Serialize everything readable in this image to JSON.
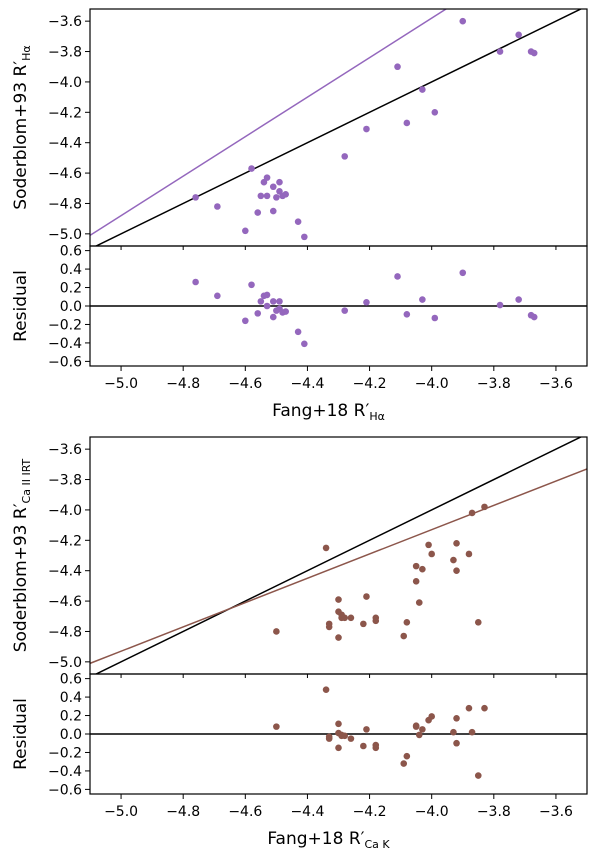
{
  "chart_data": [
    {
      "type": "scatter",
      "panel": "upper-main",
      "color": "#9467bd",
      "ylabel": "Soderblom+93 R′",
      "ylabel_sub": "Hα",
      "xlim": [
        -5.1,
        -3.5
      ],
      "ylim": [
        -5.08,
        -3.52
      ],
      "yticks": [
        "−5.0",
        "−4.8",
        "−4.6",
        "−4.4",
        "−4.2",
        "−4.0",
        "−3.8",
        "−3.6"
      ],
      "x": [
        -4.76,
        -4.69,
        -4.6,
        -4.58,
        -4.56,
        -4.55,
        -4.54,
        -4.53,
        -4.53,
        -4.51,
        -4.51,
        -4.5,
        -4.49,
        -4.49,
        -4.48,
        -4.47,
        -4.43,
        -4.41,
        -4.28,
        -4.21,
        -4.11,
        -4.08,
        -4.03,
        -3.99,
        -3.9,
        -3.78,
        -3.72,
        -3.68,
        -3.67
      ],
      "y": [
        -4.76,
        -4.82,
        -4.98,
        -4.57,
        -4.86,
        -4.75,
        -4.66,
        -4.63,
        -4.75,
        -4.85,
        -4.69,
        -4.76,
        -4.66,
        -4.72,
        -4.75,
        -4.74,
        -4.92,
        -5.02,
        -4.49,
        -4.31,
        -3.9,
        -4.27,
        -4.05,
        -4.2,
        -3.6,
        -3.8,
        -3.69,
        -3.8,
        -3.81
      ],
      "one_to_one_line": true,
      "fit_line": {
        "slope": 1.3,
        "intercept": 1.62
      }
    },
    {
      "type": "scatter",
      "panel": "upper-residual",
      "color": "#9467bd",
      "ylabel": "Residual",
      "xlabel": "Fang+18 R′",
      "xlabel_sub": "Hα",
      "xlim": [
        -5.1,
        -3.5
      ],
      "ylim": [
        -0.65,
        0.65
      ],
      "yticks": [
        "−0.6",
        "−0.4",
        "−0.2",
        "0.0",
        "0.2",
        "0.4",
        "0.6"
      ],
      "xticks": [
        "−5.0",
        "−4.8",
        "−4.6",
        "−4.4",
        "−4.2",
        "−4.0",
        "−3.8",
        "−3.6"
      ],
      "x": [
        -4.76,
        -4.69,
        -4.6,
        -4.58,
        -4.56,
        -4.55,
        -4.54,
        -4.53,
        -4.53,
        -4.51,
        -4.51,
        -4.5,
        -4.49,
        -4.49,
        -4.48,
        -4.47,
        -4.43,
        -4.41,
        -4.28,
        -4.21,
        -4.11,
        -4.08,
        -4.03,
        -3.99,
        -3.9,
        -3.78,
        -3.72,
        -3.68,
        -3.67
      ],
      "y": [
        0.26,
        0.11,
        -0.16,
        0.23,
        -0.08,
        0.05,
        0.11,
        0.12,
        0.0,
        -0.12,
        0.05,
        -0.05,
        0.05,
        -0.03,
        -0.07,
        -0.06,
        -0.28,
        -0.41,
        -0.05,
        0.04,
        0.32,
        -0.09,
        0.07,
        -0.13,
        0.36,
        0.01,
        0.07,
        -0.1,
        -0.12
      ],
      "zero_line": true
    },
    {
      "type": "scatter",
      "panel": "lower-main",
      "color": "#8c564b",
      "ylabel": "Soderblom+93 R′",
      "ylabel_sub": "Ca II IRT",
      "xlim": [
        -5.1,
        -3.5
      ],
      "ylim": [
        -5.08,
        -3.52
      ],
      "yticks": [
        "−5.0",
        "−4.8",
        "−4.6",
        "−4.4",
        "−4.2",
        "−4.0",
        "−3.8",
        "−3.6"
      ],
      "x": [
        -4.5,
        -4.34,
        -4.33,
        -4.33,
        -4.3,
        -4.3,
        -4.3,
        -4.29,
        -4.29,
        -4.28,
        -4.26,
        -4.22,
        -4.21,
        -4.18,
        -4.18,
        -4.09,
        -4.08,
        -4.05,
        -4.05,
        -4.04,
        -4.03,
        -4.01,
        -4.0,
        -3.93,
        -3.92,
        -3.92,
        -3.88,
        -3.87,
        -3.85,
        -3.83
      ],
      "y": [
        -4.8,
        -4.25,
        -4.77,
        -4.75,
        -4.59,
        -4.67,
        -4.84,
        -4.69,
        -4.71,
        -4.71,
        -4.71,
        -4.75,
        -4.57,
        -4.71,
        -4.73,
        -4.83,
        -4.74,
        -4.37,
        -4.47,
        -4.61,
        -4.39,
        -4.23,
        -4.29,
        -4.33,
        -4.4,
        -4.22,
        -4.29,
        -4.02,
        -4.74,
        -3.98
      ],
      "one_to_one_line": true,
      "fit_line": {
        "slope": 0.8,
        "intercept": -0.93
      }
    },
    {
      "type": "scatter",
      "panel": "lower-residual",
      "color": "#8c564b",
      "ylabel": "Residual",
      "xlabel": "Fang+18 R′",
      "xlabel_sub": "Ca K",
      "xlim": [
        -5.1,
        -3.5
      ],
      "ylim": [
        -0.65,
        0.65
      ],
      "yticks": [
        "−0.6",
        "−0.4",
        "−0.2",
        "0.0",
        "0.2",
        "0.4",
        "0.6"
      ],
      "xticks": [
        "−5.0",
        "−4.8",
        "−4.6",
        "−4.4",
        "−4.2",
        "−4.0",
        "−3.8",
        "−3.6"
      ],
      "x": [
        -4.5,
        -4.34,
        -4.33,
        -4.33,
        -4.3,
        -4.3,
        -4.3,
        -4.29,
        -4.29,
        -4.28,
        -4.26,
        -4.22,
        -4.21,
        -4.18,
        -4.18,
        -4.09,
        -4.08,
        -4.05,
        -4.05,
        -4.04,
        -4.03,
        -4.01,
        -4.0,
        -3.93,
        -3.92,
        -3.92,
        -3.88,
        -3.87,
        -3.85,
        -3.83
      ],
      "y": [
        0.08,
        0.48,
        -0.03,
        -0.05,
        0.11,
        -0.15,
        0.01,
        -0.01,
        -0.02,
        -0.02,
        -0.05,
        -0.13,
        0.05,
        -0.12,
        -0.15,
        -0.32,
        -0.24,
        0.08,
        0.09,
        -0.01,
        0.05,
        0.15,
        0.19,
        0.02,
        -0.1,
        0.17,
        0.28,
        0.02,
        -0.45,
        0.28
      ],
      "zero_line": true
    }
  ]
}
